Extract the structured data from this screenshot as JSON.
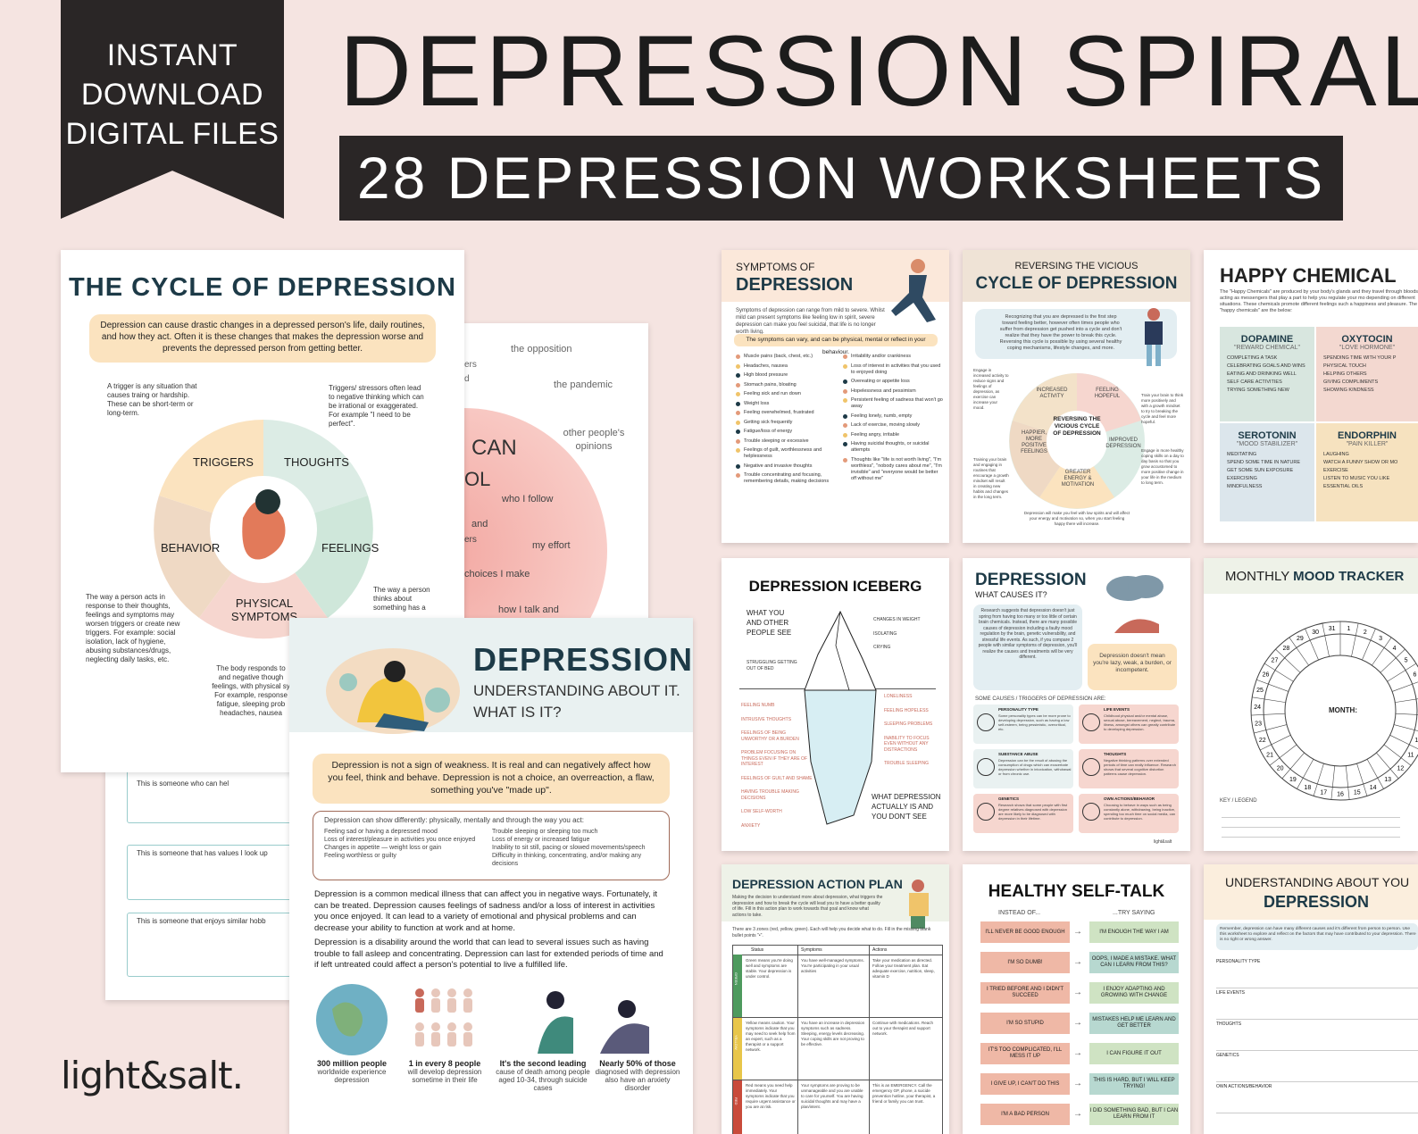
{
  "ribbon": {
    "line1": "INSTANT",
    "line2": "DOWNLOAD",
    "line3": "DIGITAL FILES"
  },
  "title": "DEPRESSION SPIRAL",
  "subtitle": "28 DEPRESSION WORKSHEETS",
  "brand": "light&salt.",
  "cycle": {
    "title": "THE CYCLE OF DEPRESSION",
    "intro": "Depression can cause drastic changes in a depressed person's life, daily routines, and how they act. Often it is these changes that makes the depression worse and prevents the depressed person from getting better.",
    "trigger_note": "A trigger is any situation that causes traing or hardship. These can be short-term or long-term.",
    "thought_note": "Triggers/ stressors often lead to negative thinking which can be irrational or exaggerated. For example \"I need to be perfect\".",
    "behavior_note": "The way a person acts in response to their thoughts, feelings and symptoms may worsen triggers or create new triggers. For example: social isolation, lack of hygiene, abusing substances/drugs, neglecting daily tasks, etc.",
    "feelings_note": "The way a person thinks about something has a",
    "body_note": "The body responds to and negative though feelings, with physical sy For example, response fatigue, sleeping prob headaches, nausea",
    "seg_triggers": "TRIGGERS",
    "seg_thoughts": "THOUGHTS",
    "seg_behavior": "BEHAVIOR",
    "seg_feelings": "FEELINGS",
    "seg_physical": "PHYSICAL SYMPTOMS"
  },
  "circle_sheet": {
    "w1": "the opposition",
    "w2": "the pandemic",
    "w3": "other people's opinions",
    "w4": "CAN",
    "w5": "OL",
    "w6": "who I follow",
    "w7": "my effort",
    "w8": "choices I make",
    "w9": "how I talk and",
    "w10": "and",
    "w11": "ers",
    "w12": "ers",
    "w13": "d"
  },
  "values_sheet": {
    "r1": "This is someone who can hel",
    "r2": "This is someone that has values I look up",
    "r3": "This is someone that enjoys similar hobb"
  },
  "understanding": {
    "title": "DEPRESSION",
    "sub1": "UNDERSTANDING ABOUT IT.",
    "sub2": "WHAT IS IT?",
    "callout": "Depression is not a sign of weakness. It is real and can negatively affect how you feel, think and behave. Depression is not a choice, an overreaction, a flaw, something you've \"made up\".",
    "box_head": "Depression can show differently: physically, mentally and through the way you act:",
    "left_items": [
      "Feeling sad or having a depressed mood",
      "Loss of interest/pleasure in activities you once enjoyed",
      "Changes in appetite — weight loss or gain",
      "Feeling worthless or guilty"
    ],
    "right_items": [
      "Trouble sleeping or sleeping too much",
      "Loss of energy or increased fatigue",
      "Inability to sit still, pacing or slowed movements/speech",
      "Difficulty in thinking, concentrating, and/or making any decisions"
    ],
    "para1": "Depression is a common medical illness that can affect you in negative ways. Fortunately, it can be treated. Depression causes feelings of sadness and/or a loss of interest in activities you once enjoyed. It can lead to a variety of emotional and physical problems and can decrease your ability to function at work and at home.",
    "para2": "Depression is a disability around the world that can lead to several issues such as having trouble to fall asleep and concentrating. Depression can last for extended periods of time and if left untreated could affect a person's potential to live a fulfilled life.",
    "stats": [
      {
        "head": "300 million people",
        "body": "worldwide experience depression"
      },
      {
        "head": "1 in every 8 people",
        "body": "will develop depression sometime in their life"
      },
      {
        "head": "It's the second leading",
        "body": "cause of death among people aged 10-34, through suicide cases"
      },
      {
        "head": "Nearly 50% of those",
        "body": "diagnosed with depression also have an anxiety disorder"
      }
    ]
  },
  "symptoms": {
    "t1": "SYMPTOMS OF",
    "t2": "DEPRESSION",
    "intro": "Symptoms of depression can range from mild to severe. Whilst mild can present symptoms like feeling low in spirit, severe depression can make you feel suicidal, that life is no longer worth living.",
    "band": "The symptoms can vary, and can be physical, mental or reflect in your behaviour.",
    "left": [
      "Muscle pains (back, chest, etc.)",
      "Headaches, nausea",
      "High blood pressure",
      "Stomach pains, bloating",
      "Feeling sick and run down",
      "Weight loss",
      "Feeling overwhelmed, frustrated",
      "Getting sick frequently",
      "Fatigue/loss of energy",
      "Trouble sleeping or excessive",
      "Feelings of guilt, worthlessness and helplessness",
      "Negative and invasive thoughts",
      "Trouble concentrating and focusing, remembering details, making decisions"
    ],
    "right": [
      "Irritability and/or crankiness",
      "Loss of interest in activities that you used to enjoyed doing",
      "Overeating or appetite loss",
      "Hopelessness and pessimism",
      "Persistent feeling of sadness that won't go away",
      "Feeling lonely, numb, empty",
      "Lack of exercise, moving slowly",
      "Feeling angry, irritable",
      "Having suicidal thoughts, or suicidal attempts",
      "Thoughts like \"life is not worth living\", \"I'm worthless\", \"nobody cares about me\", \"I'm invisible\" and \"everyone would be better off without me\""
    ]
  },
  "reversing": {
    "t1": "REVERSING THE VICIOUS",
    "t2": "CYCLE OF DEPRESSION",
    "intro": "Recognizing that you are depressed is the first step toward feeling better, however often times people who suffer from depression get pushed into a cycle and don't realize that they have the power to break this cycle. Reversing this cycle is possible by using several healthy coping mechanisms, lifestyle changes, and more.",
    "center": "REVERSING THE VICIOUS CYCLE OF DEPRESSION",
    "s1": "INCREASED ACTIVITY",
    "s2": "FEELING HOPEFUL",
    "s3": "IMPROVED DEPRESSION",
    "s4": "GREATER ENERGY & MOTIVATION",
    "s5": "HAPPIER, MORE POSITIVE FEELINGS",
    "n1": "Engage in increased activity to reduce signs and feelings of depression, as exercise can increase your mood.",
    "n2": "Train your brain to think more positively and with a growth mindset to try to breaking the cycle and feel more hopeful.",
    "n3": "Training your brain and engaging in routines that encourage a growth mindset will result in creating new habits and changes in the long term.",
    "n4": "Engage in more healthy coping skills on a day to day basis so that you grow accustomed to more positive change in your life in the medium to long term.",
    "n5": "Depression will make you feel with low spirits and will affect your energy and motivation so, when you start feeling happy there will increase."
  },
  "happy": {
    "title": "HAPPY CHEMICAL",
    "intro": "The \"Happy Chemicals\" are produced by your body's glands and they travel through bloodstream, acting as messengers that play a part to help you regulate your mo depending on different situations. These chemicals promote different feelings such a happiness and pleasure. The 4 main \"happy chemicals\" are the below:",
    "dop": "DOPAMINE",
    "dop_sub": "\"REWARD CHEMICAL\"",
    "dop_items": [
      "COMPLETING A TASK",
      "CELEBRATING GOALS AND WINS",
      "EATING AND DRINKING WELL",
      "SELF CARE ACTIVITIES",
      "TRYING SOMETHING NEW"
    ],
    "oxy": "OXYTOCIN",
    "oxy_sub": "\"LOVE HORMONE\"",
    "oxy_items": [
      "SPENDING TIME WITH YOUR P",
      "PHYSICAL TOUCH",
      "HELPING OTHERS",
      "GIVING COMPLIMENTS",
      "SHOWING KINDNESS"
    ],
    "ser": "SEROTONIN",
    "ser_sub": "\"MOOD STABILIZER\"",
    "ser_items": [
      "MEDITATING",
      "SPEND SOME TIME IN NATURE",
      "GET SOME SUN EXPOSURE",
      "EXERCISING",
      "MINDFULNESS"
    ],
    "end": "ENDORPHIN",
    "end_sub": "\"PAIN KILLER\"",
    "end_items": [
      "LAUGHING",
      "WATCH A FUNNY SHOW OR MO",
      "EXERCISE",
      "LISTEN TO MUSIC YOU LIKE",
      "ESSENTIAL OILS"
    ]
  },
  "iceberg": {
    "title": "DEPRESSION ICEBERG",
    "top_left": "WHAT YOU AND OTHER PEOPLE SEE",
    "bottom_right": "WHAT DEPRESSION ACTUALLY IS AND YOU DON'T SEE",
    "above_left": [
      "STRUGGLING GETTING OUT OF BED"
    ],
    "above_right": [
      "CHANGES IN WEIGHT",
      "ISOLATING",
      "CRYING"
    ],
    "below_left": [
      "FEELING NUMB",
      "INTRUSIVE THOUGHTS",
      "FEELINGS OF BEING UNWORTHY OR A BURDEN",
      "PROBLEM FOCUSING ON THINGS EVEN IF THEY ARE OF INTEREST",
      "FEELINGS OF GUILT AND SHAME",
      "HAVING TROUBLE MAKING DECISIONS",
      "LOW SELF-WORTH",
      "ANXIETY"
    ],
    "below_right": [
      "LONELINESS",
      "FEELING HOPELESS",
      "SLEEPING PROBLEMS",
      "INABILITY TO FOCUS EVEN WITHOUT ANY DISTRACTIONS",
      "TROUBLE SLEEPING"
    ]
  },
  "causes": {
    "t1": "DEPRESSION",
    "t2": "WHAT CAUSES IT?",
    "intro": "Research suggests that depression doesn't just spring from having too many or too little of certain brain chemicals. Instead, there are many possible causes of depression including a faulty mood regulation by the brain, genetic vulnerability, and stressful life events. As such, if you compare 2 people with similar symptoms of depression, you'll realize the causes and treatments will be very different.",
    "bubble": "Depression doesn't mean you're lazy, weak, a burden, or incompetent.",
    "list_head": "SOME CAUSES / TRIGGERS OF DEPRESSION ARE:",
    "items": [
      {
        "h": "PERSONALITY TYPE",
        "b": "Some personality types can be more prone to developing depression, such as having a low self-esteem, being pessimistic, overcritical, etc."
      },
      {
        "h": "LIFE EVENTS",
        "b": "Childhood physical and/or mental abuse, sexual abuse, bereavement, neglect, trauma, illness, amongst others can greatly contribute to developing depression."
      },
      {
        "h": "SUBSTANCE ABUSE",
        "b": "Depression can be the result of abusing the consumption of drugs which can exacerbate depression whether in intoxication, withdrawal or from chronic use."
      },
      {
        "h": "THOUGHTS",
        "b": "Negative thinking patterns over extended periods of time can really influence. Research shows that several cognitive distortion patterns cause depression."
      },
      {
        "h": "GENETICS",
        "b": "Research shows that some people with first degree relatives diagnosed with depression are more likely to be diagnosed with depression in their lifetime."
      },
      {
        "h": "OWN ACTIONS/BEHAVIOR",
        "b": "Choosing to behave in ways such as being constantly alone, withdrawing, being inactive, spending too much time on social media, can contribute to depression."
      }
    ],
    "footer": "light&salt"
  },
  "mood": {
    "t1": "MONTHLY",
    "t2": "MOOD",
    "t3": "TRACKER",
    "center": "MONTH:",
    "key": "KEY / LEGEND",
    "days": [
      "1",
      "2",
      "3",
      "4",
      "5",
      "6",
      "7",
      "8",
      "9",
      "10",
      "11",
      "12",
      "13",
      "14",
      "15",
      "16",
      "17",
      "18",
      "19",
      "20",
      "21",
      "22",
      "23",
      "24",
      "25",
      "26",
      "27",
      "28",
      "29",
      "30",
      "31"
    ]
  },
  "action": {
    "title": "DEPRESSION ACTION PLAN",
    "intro": "Making the decision to understand more about depression, what triggers the depression and how to break the cycle will lead you to have a better quality of life. Fill in this action plan to work towards that goal and know what actions to take.",
    "zones": "There are 3 zones (red, yellow, green). Each will help you decide what to do. Fill in the missing blank bullet points \"•\".",
    "cols": [
      "Status",
      "Symptoms",
      "Actions"
    ],
    "green": {
      "tag": "GREEN",
      "status": "Green means you're doing well and symptoms are stable. Your depression is under control.",
      "sym": "You have well-managed symptoms. You're participating in your usual activities",
      "act": "Take your medication as directed. Follow your treatment plan. Eat adequate exercise, nutrition, sleep, vitamin D"
    },
    "yellow": {
      "tag": "YELLOW",
      "status": "Yellow means caution. Your symptoms indicate that you may need to seek help from an expert, such as a therapist or a support network.",
      "sym": "You have an increase in depression symptoms such as sadness. Sleeping, energy levels decreasing. Your coping skills are not proving to be effective.",
      "act": "Continue with medications. Reach out to your therapist and support network."
    },
    "red": {
      "tag": "RED",
      "status": "Red means you need help immediately. Your symptoms indicate that you require urgent assistance or you are at risk.",
      "sym": "Your symptoms are proving to be unmanageable and you are unable to care for yourself. You are having suicidal thoughts and may have a plan/intent.",
      "act": "This is an EMERGENCY. Call the emergency GP, phone, a suicide prevention hotline, your therapist, a friend or family you can trust."
    }
  },
  "selftalk": {
    "title": "HEALTHY SELF-TALK",
    "instead": "INSTEAD OF...",
    "try": "...TRY SAYING",
    "pairs": [
      [
        "I'LL NEVER BE GOOD ENOUGH",
        "I'M ENOUGH THE WAY I AM"
      ],
      [
        "I'M SO DUMB!",
        "OOPS, I MADE A MISTAKE. WHAT CAN I LEARN FROM THIS?"
      ],
      [
        "I TRIED BEFORE AND I DIDN'T SUCCEED",
        "I ENJOY ADAPTING AND GROWING WITH CHANGE"
      ],
      [
        "I'M SO STUPID",
        "MISTAKES HELP ME LEARN AND GET BETTER"
      ],
      [
        "IT'S TOO COMPLICATED, I'LL MESS IT UP",
        "I CAN FIGURE IT OUT"
      ],
      [
        "I GIVE UP, I CAN'T DO THIS",
        "THIS IS HARD, BUT I WILL KEEP TRYING!"
      ],
      [
        "I'M A BAD PERSON",
        "I DID SOMETHING BAD, BUT I CAN LEARN FROM IT"
      ]
    ]
  },
  "understand2": {
    "t1": "UNDERSTANDING ABOUT YOU",
    "t2": "DEPRESSION",
    "intro": "Remember, depression can have many different causes and it's different from person to person. Use this worksheet to explore and reflect on the factors that may have contributed to your depression. There is no right or wrong answer.",
    "fields": [
      "PERSONALITY TYPE",
      "LIFE EVENTS",
      "THOUGHTS",
      "GENETICS",
      "OWN ACTIONS/BEHAVIOR"
    ]
  },
  "colors": {
    "accent": "#1d3a47",
    "peach": "#fbe3bf",
    "mint": "#dcece5",
    "rose": "#f6d6cf",
    "tan": "#efd9c4",
    "ribbon": "#2a2626"
  }
}
